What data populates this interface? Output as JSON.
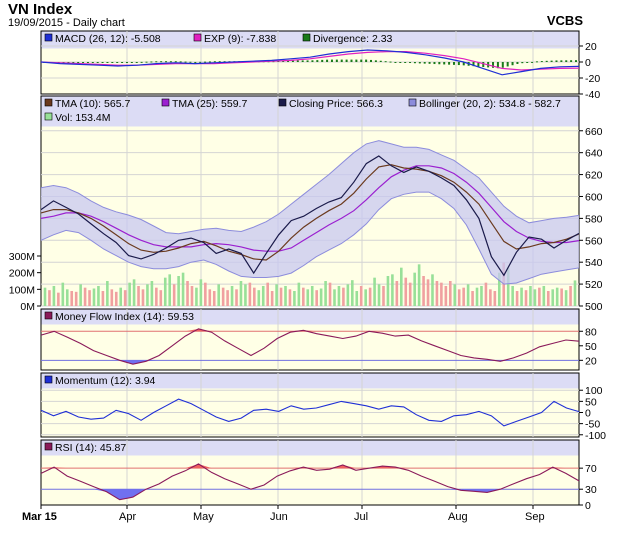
{
  "header": {
    "title": "VN Index",
    "subtitle": "19/09/2015 - Daily chart",
    "brand": "VCBS"
  },
  "colors": {
    "panel_bg": "#ffffe6",
    "legend_band": "#dcdcf5",
    "band_fill": "#c8c8f0",
    "grid": "#d4d4d4",
    "close": "#1a1a4a",
    "tma10": "#6b3a1e",
    "tma25": "#9b20d0",
    "bollinger": "#8c8cdc",
    "macd": "#1f2fd6",
    "exp": "#e020c0",
    "divergence": "#1a7a1a",
    "vol_up": "#98e098",
    "vol_down": "#f0a0a0",
    "mfi": "#8a1a5a",
    "momentum": "#1f2fd6",
    "rsi": "#8a1a5a",
    "overbought_fill": "#f06060",
    "oversold_fill": "#7070f0"
  },
  "chart_data": [
    {
      "type": "line",
      "id": "macd",
      "legend": [
        {
          "label": "MACD (26, 12): -5.508",
          "color": "#1f2fd6"
        },
        {
          "label": "EXP (9): -7.838",
          "color": "#e020c0"
        },
        {
          "label": "Divergence: 2.33",
          "color": "#1a7a1a"
        }
      ],
      "y_ticks": [
        "20",
        "0",
        "-20",
        "-40"
      ],
      "ylim": [
        -40,
        25
      ],
      "series": [
        {
          "name": "MACD (26, 12)",
          "values": [
            0,
            -2,
            -3,
            -4,
            -5,
            -4,
            -2,
            -1,
            -2,
            -1,
            0,
            1,
            2,
            4,
            6,
            10,
            13,
            15,
            14,
            12,
            9,
            5,
            0,
            -8,
            -16,
            -12,
            -8,
            -6,
            -5.5
          ]
        },
        {
          "name": "EXP (9)",
          "values": [
            0,
            -1,
            -2,
            -3,
            -4,
            -4,
            -3,
            -2,
            -2,
            -2,
            -1,
            0,
            1,
            2,
            4,
            7,
            10,
            12,
            13,
            13,
            11,
            8,
            4,
            -2,
            -8,
            -10,
            -9,
            -8,
            -7.8
          ]
        },
        {
          "name": "Divergence",
          "values": [
            0,
            -1,
            -1,
            -1,
            -1,
            0,
            1,
            1,
            0,
            1,
            1,
            1,
            1,
            2,
            2,
            3,
            3,
            3,
            1,
            -1,
            -2,
            -3,
            -4,
            -6,
            -8,
            -2,
            1,
            2,
            2.3
          ]
        }
      ]
    },
    {
      "type": "line",
      "id": "price",
      "legend": [
        {
          "label": "TMA (10): 565.7",
          "color": "#6b3a1e"
        },
        {
          "label": "TMA (25): 559.7",
          "color": "#9b20d0"
        },
        {
          "label": "Closing Price: 566.3",
          "color": "#1a1a4a"
        },
        {
          "label": "Bollinger (20, 2): 534.8 - 582.7",
          "color": "#8c8cdc"
        },
        {
          "label": "Vol: 153.4M",
          "color": "#98e098"
        }
      ],
      "y_ticks": [
        "660",
        "640",
        "620",
        "600",
        "580",
        "560",
        "540",
        "520",
        "500"
      ],
      "ylim": [
        500,
        668
      ],
      "vol_ticks": [
        "300M",
        "200M",
        "100M",
        "0M"
      ],
      "vol_lim": [
        0,
        360
      ],
      "series": [
        {
          "name": "Closing Price",
          "values": [
            588,
            596,
            590,
            584,
            575,
            566,
            558,
            546,
            543,
            547,
            553,
            560,
            562,
            558,
            548,
            552,
            548,
            530,
            548,
            565,
            578,
            582,
            589,
            595,
            599,
            613,
            630,
            637,
            628,
            622,
            627,
            623,
            617,
            610,
            597,
            580,
            545,
            528,
            549,
            563,
            561,
            553,
            560,
            566.3
          ]
        },
        {
          "name": "TMA (10)",
          "values": [
            585,
            588,
            588,
            585,
            580,
            573,
            565,
            557,
            551,
            549,
            550,
            553,
            557,
            559,
            555,
            550,
            547,
            543,
            542,
            550,
            562,
            572,
            580,
            587,
            593,
            603,
            616,
            627,
            629,
            626,
            625,
            623,
            619,
            613,
            604,
            593,
            576,
            559,
            552,
            554,
            557,
            558,
            561,
            565.7
          ]
        },
        {
          "name": "TMA (25)",
          "values": [
            580,
            582,
            585,
            585,
            582,
            577,
            571,
            565,
            560,
            556,
            554,
            554,
            554,
            556,
            557,
            556,
            554,
            551,
            550,
            550,
            553,
            560,
            567,
            574,
            580,
            587,
            597,
            608,
            618,
            624,
            628,
            628,
            626,
            621,
            613,
            603,
            590,
            577,
            568,
            562,
            559,
            558,
            558,
            559.7
          ]
        },
        {
          "name": "Bollinger upper",
          "values": [
            608,
            610,
            608,
            603,
            596,
            590,
            586,
            583,
            579,
            573,
            567,
            566,
            568,
            570,
            571,
            569,
            568,
            572,
            577,
            584,
            593,
            602,
            611,
            620,
            630,
            640,
            648,
            651,
            648,
            645,
            645,
            643,
            638,
            633,
            625,
            617,
            604,
            591,
            582,
            576,
            578,
            580,
            581,
            582.7
          ]
        },
        {
          "name": "Bollinger lower",
          "values": [
            560,
            565,
            569,
            567,
            560,
            552,
            546,
            540,
            536,
            534,
            534,
            536,
            540,
            542,
            538,
            532,
            527,
            526,
            526,
            527,
            530,
            537,
            545,
            551,
            557,
            565,
            575,
            588,
            598,
            602,
            604,
            604,
            598,
            589,
            574,
            552,
            529,
            520,
            521,
            525,
            529,
            531,
            533,
            534.8
          ]
        }
      ],
      "volume": [
        110,
        95,
        120,
        80,
        140,
        100,
        90,
        85,
        130,
        110,
        95,
        105,
        120,
        90,
        150,
        100,
        85,
        110,
        95,
        140,
        160,
        120,
        100,
        130,
        150,
        110,
        95,
        170,
        190,
        130,
        180,
        200,
        150,
        120,
        110,
        160,
        140,
        100,
        90,
        130,
        110,
        95,
        120,
        100,
        150,
        130,
        140,
        110,
        95,
        120,
        140,
        90,
        130,
        110,
        120,
        100,
        90,
        140,
        110,
        100,
        120,
        95,
        105,
        150,
        140,
        100,
        120,
        110,
        130,
        155,
        90,
        120,
        100,
        110,
        170,
        130,
        120,
        180,
        190,
        150,
        230,
        170,
        140,
        200,
        250,
        180,
        160,
        190,
        150,
        140,
        120,
        150,
        130,
        100,
        110,
        130,
        90,
        110,
        120,
        140,
        100,
        90,
        200,
        260,
        230,
        120,
        90,
        110,
        95,
        120,
        100,
        110,
        120,
        90,
        100,
        110,
        105,
        95,
        120,
        153.4
      ],
      "volume_up": [
        true,
        false,
        true,
        false,
        true,
        true,
        false,
        false,
        true,
        false,
        false,
        true,
        true,
        false,
        true,
        false,
        false,
        true,
        false,
        true,
        true,
        false,
        false,
        true,
        true,
        false,
        false,
        true,
        true,
        false,
        true,
        true,
        false,
        false,
        true,
        true,
        false,
        false,
        false,
        true,
        false,
        false,
        true,
        false,
        true,
        true,
        false,
        false,
        true,
        true,
        false,
        false,
        true,
        false,
        true,
        false,
        true,
        true,
        false,
        true,
        true,
        false,
        true,
        true,
        false,
        true,
        true,
        false,
        true,
        true,
        true,
        false,
        true,
        false,
        true,
        true,
        false,
        true,
        true,
        false,
        true,
        false,
        false,
        true,
        true,
        false,
        false,
        true,
        false,
        false,
        false,
        false,
        true,
        false,
        false,
        true,
        false,
        true,
        true,
        false,
        false,
        false,
        true,
        false,
        true,
        true,
        false,
        true,
        false,
        true,
        true,
        false,
        true,
        false,
        true,
        true,
        false,
        true,
        false,
        true
      ]
    },
    {
      "type": "line",
      "id": "mfi",
      "legend": [
        {
          "label": "Money Flow Index (14): 59.53",
          "color": "#8a1a5a"
        }
      ],
      "y_ticks": [
        "80",
        "50",
        "20"
      ],
      "ylim": [
        0,
        95
      ],
      "upper": 80,
      "lower": 20,
      "series": [
        {
          "name": "Money Flow Index (14)",
          "values": [
            72,
            80,
            68,
            55,
            40,
            30,
            20,
            12,
            18,
            30,
            50,
            70,
            85,
            78,
            60,
            45,
            30,
            45,
            65,
            78,
            82,
            75,
            70,
            65,
            70,
            80,
            76,
            70,
            72,
            60,
            50,
            40,
            30,
            25,
            22,
            18,
            25,
            35,
            48,
            55,
            62,
            59.53
          ]
        }
      ]
    },
    {
      "type": "line",
      "id": "momentum",
      "legend": [
        {
          "label": "Momentum (12): 3.94",
          "color": "#1f2fd6"
        }
      ],
      "y_ticks": [
        "100",
        "50",
        "0",
        "-50",
        "-100"
      ],
      "ylim": [
        -110,
        110
      ],
      "series": [
        {
          "name": "Momentum (12)",
          "values": [
            10,
            -15,
            5,
            -20,
            -30,
            -25,
            10,
            -5,
            -35,
            0,
            30,
            60,
            40,
            10,
            -20,
            -40,
            -25,
            10,
            15,
            5,
            30,
            15,
            20,
            35,
            50,
            40,
            30,
            15,
            30,
            25,
            -10,
            -35,
            -40,
            -15,
            -10,
            5,
            -15,
            -60,
            -40,
            -20,
            0,
            50,
            20,
            3.94
          ]
        }
      ]
    },
    {
      "type": "line",
      "id": "rsi",
      "legend": [
        {
          "label": "RSI (14): 45.87",
          "color": "#8a1a5a"
        }
      ],
      "y_ticks": [
        "70",
        "30",
        "0"
      ],
      "ylim": [
        0,
        95
      ],
      "upper": 70,
      "lower": 30,
      "series": [
        {
          "name": "RSI (14)",
          "values": [
            60,
            72,
            55,
            45,
            35,
            25,
            10,
            15,
            30,
            40,
            55,
            65,
            78,
            62,
            50,
            40,
            30,
            38,
            55,
            65,
            72,
            66,
            68,
            76,
            66,
            70,
            74,
            72,
            66,
            55,
            45,
            35,
            28,
            26,
            24,
            30,
            40,
            50,
            58,
            72,
            60,
            45.87
          ]
        }
      ]
    }
  ],
  "x_axis": {
    "months": [
      "Mar 15",
      "Apr",
      "May",
      "Jun",
      "Jul",
      "Aug",
      "Sep"
    ]
  }
}
